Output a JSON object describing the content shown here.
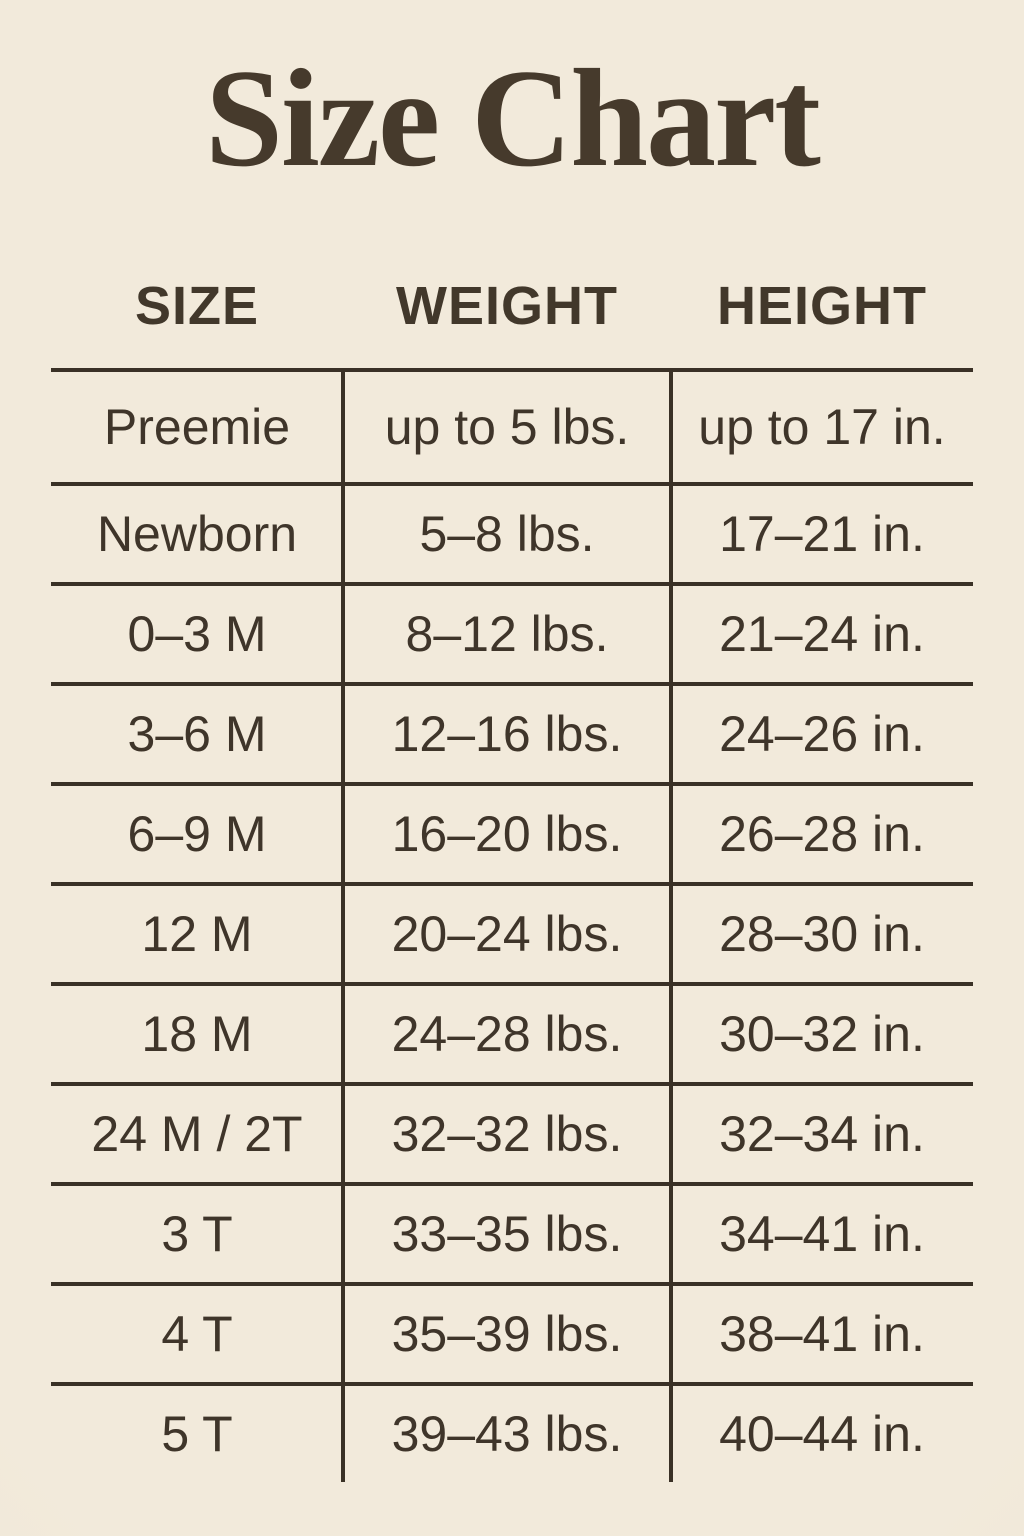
{
  "title": "Size Chart",
  "colors": {
    "background": "#f0e7d7",
    "ink": "#3f352a",
    "line": "#3a3126"
  },
  "table": {
    "columns": [
      "SIZE",
      "WEIGHT",
      "HEIGHT"
    ],
    "rows": [
      {
        "size": "Preemie",
        "weight": "up to 5 lbs.",
        "height": "up to 17 in."
      },
      {
        "size": "Newborn",
        "weight": "5–8 lbs.",
        "height": "17–21 in."
      },
      {
        "size": "0–3 M",
        "weight": "8–12 lbs.",
        "height": "21–24 in."
      },
      {
        "size": "3–6 M",
        "weight": "12–16 lbs.",
        "height": "24–26 in."
      },
      {
        "size": "6–9 M",
        "weight": "16–20 lbs.",
        "height": "26–28 in."
      },
      {
        "size": "12 M",
        "weight": "20–24 lbs.",
        "height": "28–30 in."
      },
      {
        "size": "18 M",
        "weight": "24–28 lbs.",
        "height": "30–32 in."
      },
      {
        "size": "24 M / 2T",
        "weight": "32–32 lbs.",
        "height": "32–34 in."
      },
      {
        "size": "3 T",
        "weight": "33–35 lbs.",
        "height": "34–41 in."
      },
      {
        "size": "4 T",
        "weight": "35–39 lbs.",
        "height": "38–41 in."
      },
      {
        "size": "5 T",
        "weight": "39–43 lbs.",
        "height": "40–44 in."
      }
    ]
  },
  "chart_data": {
    "type": "table",
    "title": "Size Chart",
    "columns": [
      "SIZE",
      "WEIGHT",
      "HEIGHT"
    ],
    "rows": [
      [
        "Preemie",
        "up to 5 lbs.",
        "up to 17 in."
      ],
      [
        "Newborn",
        "5–8 lbs.",
        "17–21 in."
      ],
      [
        "0–3 M",
        "8–12 lbs.",
        "21–24 in."
      ],
      [
        "3–6 M",
        "12–16 lbs.",
        "24–26 in."
      ],
      [
        "6–9 M",
        "16–20 lbs.",
        "26–28 in."
      ],
      [
        "12 M",
        "20–24 lbs.",
        "28–30 in."
      ],
      [
        "18 M",
        "24–28 lbs.",
        "30–32 in."
      ],
      [
        "24 M / 2T",
        "32–32 lbs.",
        "32–34 in."
      ],
      [
        "3 T",
        "33–35 lbs.",
        "34–41 in."
      ],
      [
        "4 T",
        "35–39 lbs.",
        "38–41 in."
      ],
      [
        "5 T",
        "39–43 lbs.",
        "40–44 in."
      ]
    ]
  }
}
